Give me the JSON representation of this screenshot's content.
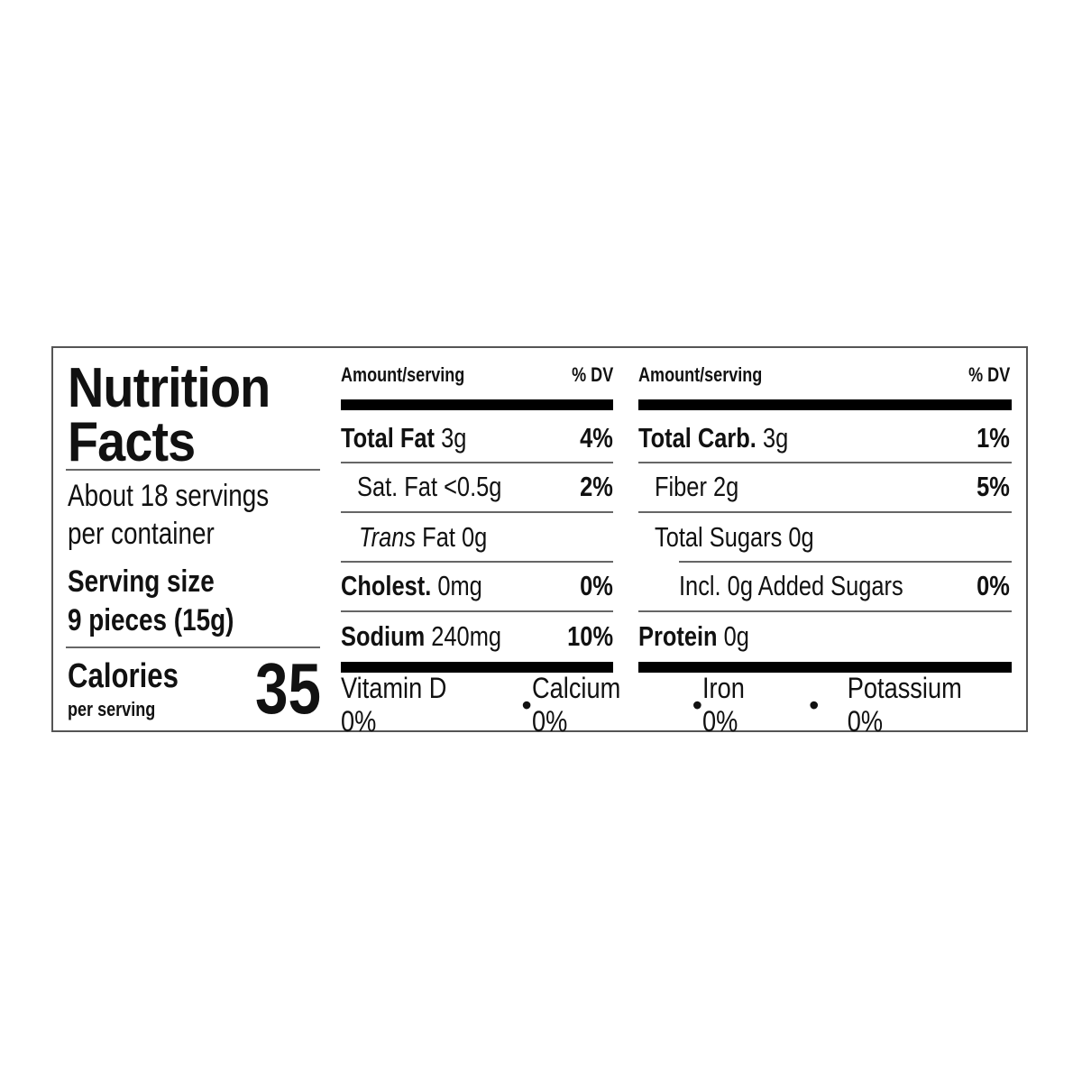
{
  "title_line1": "Nutrition",
  "title_line2": "Facts",
  "servings_line1": "About 18 servings",
  "servings_line2": "per container",
  "serving_size_label": "Serving size",
  "serving_size_value": "9 pieces (15g)",
  "calories_label": "Calories",
  "calories_sub": "per serving",
  "calories_value": "35",
  "header": {
    "amount": "Amount/serving",
    "dv": "% DV"
  },
  "left_rows": [
    {
      "name": "Total Fat",
      "amount": "3g",
      "dv": "4%"
    },
    {
      "name": "Sat. Fat",
      "amount": "<0.5g",
      "dv": "2%"
    },
    {
      "name_italic": "Trans",
      "name": "Fat",
      "amount": "0g",
      "dv": ""
    },
    {
      "name": "Cholest.",
      "amount": "0mg",
      "dv": "0%"
    },
    {
      "name": "Sodium",
      "amount": "240mg",
      "dv": "10%"
    }
  ],
  "right_rows": [
    {
      "name": "Total Carb.",
      "amount": "3g",
      "dv": "1%"
    },
    {
      "name": "Fiber",
      "amount": "2g",
      "dv": "5%"
    },
    {
      "name": "Total Sugars",
      "amount": "0g",
      "dv": ""
    },
    {
      "name": "Incl. 0g Added Sugars",
      "amount": "",
      "dv": "0%"
    },
    {
      "name": "Protein",
      "amount": "0g",
      "dv": ""
    }
  ],
  "micronutrients": [
    {
      "name": "Vitamin D",
      "dv": "0%"
    },
    {
      "name": "Calcium",
      "dv": "0%"
    },
    {
      "name": "Iron",
      "dv": "0%"
    },
    {
      "name": "Potassium",
      "dv": "0%"
    }
  ]
}
